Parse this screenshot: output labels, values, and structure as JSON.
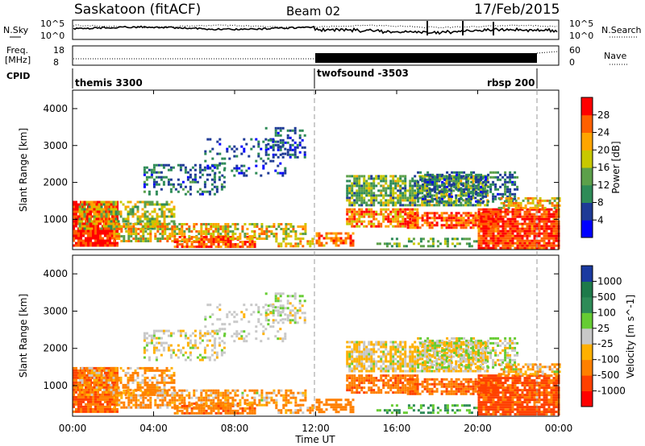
{
  "header": {
    "station": "Saskatoon (fitACF)",
    "beam": "Beam 02",
    "date": "17/Feb/2015"
  },
  "noise_panel": {
    "left_label": "N.Sky",
    "right_label": "N.Search",
    "left_ticks": [
      "10^5",
      "10^0"
    ],
    "right_ticks": [
      "10^5",
      "10^0"
    ]
  },
  "freq_panel": {
    "left_label_1": "Freq.",
    "left_label_2": "[MHz]",
    "right_label": "Nave",
    "left_ticks": [
      "18",
      "8"
    ],
    "right_ticks": [
      "60",
      "0"
    ]
  },
  "cpid": {
    "label": "CPID",
    "segments": [
      {
        "name": "themis 3300",
        "start_h": 0,
        "end_h": 12
      },
      {
        "name": "twofsound -3503",
        "start_h": 12,
        "end_h": 23
      },
      {
        "name": "rbsp 200",
        "start_h": 23,
        "end_h": 24
      }
    ]
  },
  "power_colorbar": {
    "label": "Power [dB]",
    "ticks": [
      "28",
      "24",
      "20",
      "16",
      "12",
      "8",
      "4"
    ],
    "colors": [
      "#0000ff",
      "#1e3a96",
      "#2e8b57",
      "#5ca04a",
      "#c8c800",
      "#ffa500",
      "#ff6000",
      "#ff0000"
    ]
  },
  "velocity_colorbar": {
    "label": "Velocity [m s^-1]",
    "ticks": [
      "1000",
      "500",
      "100",
      "25",
      "-25",
      "-100",
      "-500",
      "-1000"
    ],
    "colors": [
      "#ff0000",
      "#ff4000",
      "#ff8000",
      "#ffb000",
      "#c8c8c8",
      "#66cc33",
      "#2e8b57",
      "#1e7a4a",
      "#1a3aa0"
    ]
  },
  "chart_data": [
    {
      "type": "heatmap",
      "title": "Power",
      "ylabel": "Slant Range [km]",
      "ylim": [
        180,
        4500
      ],
      "xlim_hours": [
        0,
        24
      ],
      "yticks": [
        "1000",
        "2000",
        "3000",
        "4000"
      ],
      "colorbar": "Power [dB]",
      "clim": [
        0,
        30
      ]
    },
    {
      "type": "heatmap",
      "title": "Velocity",
      "ylabel": "Slant Range [km]",
      "ylim": [
        180,
        4500
      ],
      "xlim_hours": [
        0,
        24
      ],
      "yticks": [
        "1000",
        "2000",
        "3000",
        "4000"
      ],
      "colorbar": "Velocity [m s^-1]",
      "clim": [
        -1000,
        1000
      ]
    }
  ],
  "x_axis": {
    "ticks": [
      "00:00",
      "04:00",
      "08:00",
      "12:00",
      "16:00",
      "20:00",
      "00:00"
    ],
    "label": "Time UT"
  }
}
